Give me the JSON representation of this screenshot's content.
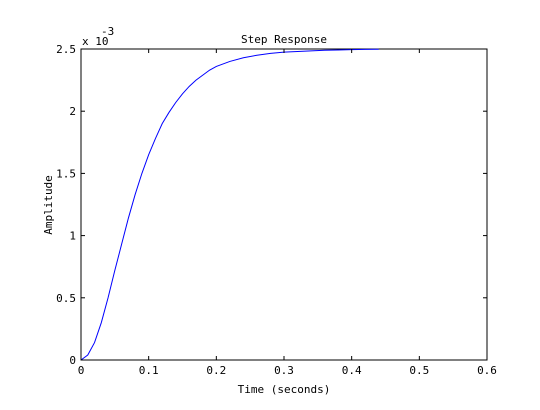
{
  "chart_data": {
    "type": "line",
    "title": "Step Response",
    "xlabel": "Time (seconds)",
    "ylabel": "Amplitude",
    "xlim": [
      0,
      0.6
    ],
    "ylim": [
      0,
      2.5
    ],
    "xticks": [
      0,
      0.1,
      0.2,
      0.3,
      0.4,
      0.5,
      0.6
    ],
    "xtick_labels": [
      "0",
      "0.1",
      "0.2",
      "0.3",
      "0.4",
      "0.5",
      "0.6"
    ],
    "yticks": [
      0,
      0.5,
      1,
      1.5,
      2,
      2.5
    ],
    "ytick_labels": [
      "0",
      "0.5",
      "1",
      "1.5",
      "2",
      "2.5"
    ],
    "y_exponent_base": "x 10",
    "y_exponent_power": "-3",
    "grid": false,
    "series": [
      {
        "color": "#0000ff",
        "x": [
          0,
          0.01,
          0.02,
          0.03,
          0.04,
          0.05,
          0.06,
          0.07,
          0.08,
          0.09,
          0.1,
          0.11,
          0.12,
          0.13,
          0.14,
          0.15,
          0.16,
          0.17,
          0.18,
          0.19,
          0.2,
          0.22,
          0.24,
          0.26,
          0.28,
          0.3,
          0.32,
          0.34,
          0.36,
          0.38,
          0.4,
          0.42,
          0.44
        ],
        "y": [
          0,
          0.04,
          0.14,
          0.3,
          0.5,
          0.72,
          0.93,
          1.14,
          1.33,
          1.5,
          1.65,
          1.78,
          1.9,
          1.99,
          2.07,
          2.14,
          2.2,
          2.25,
          2.29,
          2.33,
          2.36,
          2.4,
          2.43,
          2.45,
          2.465,
          2.475,
          2.48,
          2.485,
          2.49,
          2.492,
          2.495,
          2.497,
          2.498
        ]
      }
    ]
  }
}
